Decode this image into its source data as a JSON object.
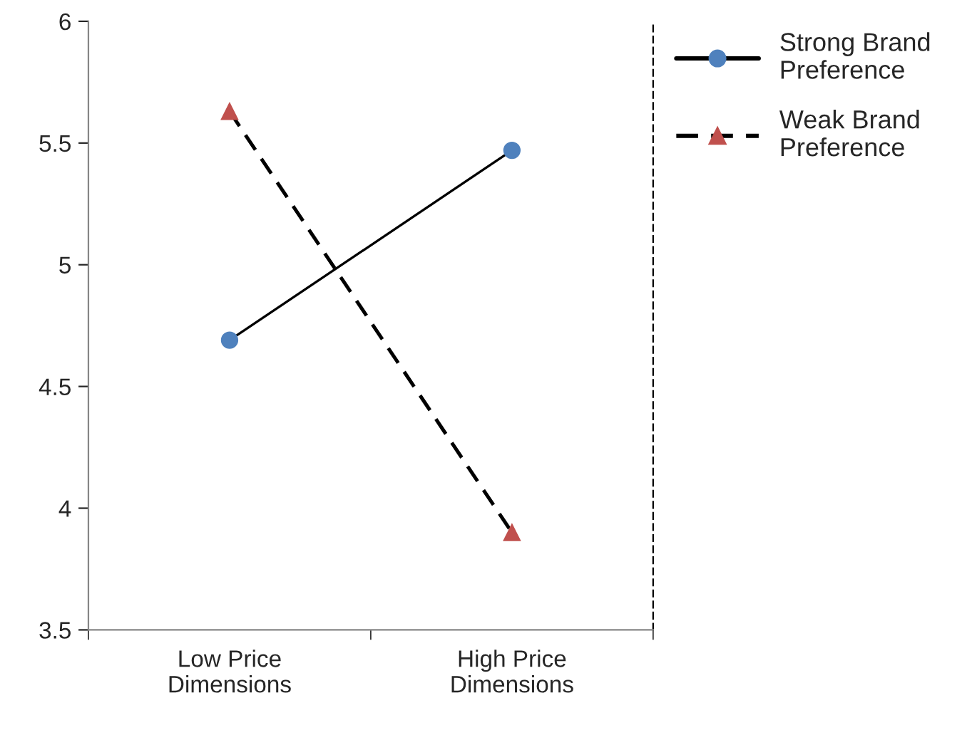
{
  "chart_data": {
    "type": "line",
    "categories": [
      "Low Price\nDimensions",
      "High Price\nDimensions"
    ],
    "series": [
      {
        "name": "Strong Brand\nPreference",
        "color": "#4f81bd",
        "values": [
          4.69,
          5.47
        ],
        "marker": "circle",
        "line_style": "solid"
      },
      {
        "name": "Weak Brand\nPreference",
        "color": "#c0504d",
        "values": [
          5.63,
          3.9
        ],
        "marker": "triangle",
        "line_style": "dashed"
      }
    ],
    "ylim": [
      3.5,
      6
    ],
    "yticks": [
      3.5,
      4,
      4.5,
      5,
      5.5,
      6
    ],
    "grid": false,
    "legend": "top right"
  }
}
